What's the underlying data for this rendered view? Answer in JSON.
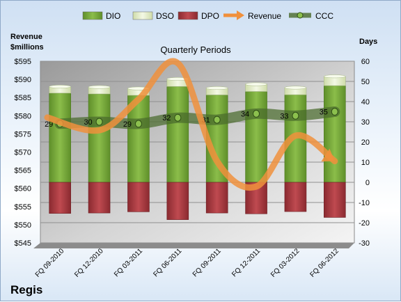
{
  "chart_data": {
    "type": "bar",
    "title": "Quarterly Periods",
    "company": "Regis",
    "left_axis_title": [
      "Revenue",
      "$millions"
    ],
    "right_axis_title": "Days",
    "categories": [
      "FQ 09-2010",
      "FQ 12-2010",
      "FQ 03-2011",
      "FQ 06-2011",
      "FQ 09-2011",
      "FQ 12-2011",
      "FQ 03-2012",
      "FQ 06-2012"
    ],
    "left_ylim": [
      545,
      595
    ],
    "left_ticks": [
      "$545",
      "$550",
      "$555",
      "$560",
      "$565",
      "$570",
      "$575",
      "$580",
      "$585",
      "$590",
      "$595"
    ],
    "right_ylim": [
      -30,
      60
    ],
    "right_ticks": [
      "-30",
      "-20",
      "-10",
      "0",
      "10",
      "20",
      "30",
      "40",
      "50",
      "60"
    ],
    "series": [
      {
        "name": "DIO",
        "color": "#77a83a",
        "values": [
          44.2,
          43.8,
          43.1,
          47.5,
          43.3,
          45.0,
          43.4,
          47.9
        ]
      },
      {
        "name": "DSO",
        "color": "#e3ecc8",
        "values": [
          3.2,
          3.4,
          3.4,
          3.7,
          3.4,
          3.6,
          3.5,
          4.6
        ]
      },
      {
        "name": "DPO",
        "color": "#a8393f",
        "values": [
          -15.4,
          -15.2,
          -14.6,
          -18.5,
          -15.2,
          -15.6,
          -14.5,
          -17.4
        ]
      },
      {
        "name": "Revenue",
        "color": "#f0903c",
        "values": [
          579.5,
          576.0,
          584.5,
          594.5,
          567.5,
          560.5,
          574.5,
          567.5
        ]
      },
      {
        "name": "CCC",
        "color": "#4e7a2c",
        "values": [
          29,
          30,
          29,
          32,
          31,
          34,
          33,
          35
        ]
      }
    ],
    "ccc_labels": [
      "29",
      "30",
      "29",
      "32",
      "31",
      "34",
      "33",
      "35"
    ],
    "grid": true,
    "legend": "top"
  }
}
